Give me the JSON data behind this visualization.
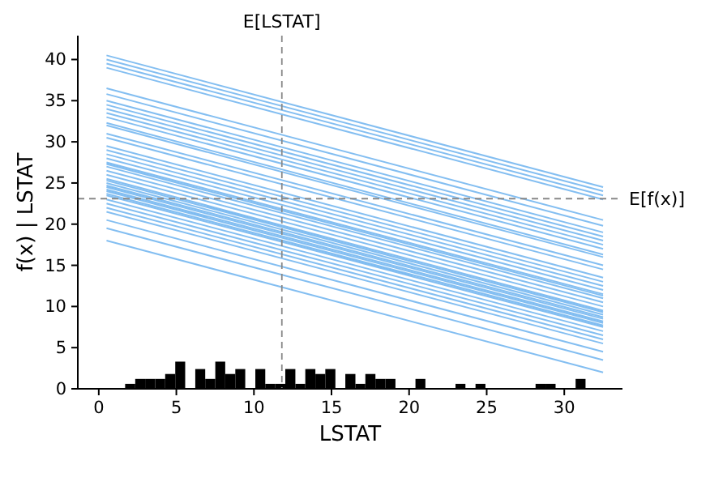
{
  "chart_data": {
    "type": "line",
    "xlabel": "LSTAT",
    "ylabel": "f(x) | LSTAT",
    "xlim": [
      -1.35,
      33.75
    ],
    "ylim": [
      0,
      42.9
    ],
    "xticks": [
      0,
      5,
      10,
      15,
      20,
      25,
      30
    ],
    "yticks": [
      0,
      5,
      10,
      15,
      20,
      25,
      30,
      35,
      40
    ],
    "grid": false,
    "x": [
      0.5,
      32.5
    ],
    "ref_lines": [
      {
        "axis": "x",
        "value": 11.8,
        "label": "E[LSTAT]",
        "color": "#888888",
        "line_style": "dashed"
      },
      {
        "axis": "y",
        "value": 23.1,
        "label": "E[f(x)]",
        "color": "#888888",
        "line_style": "dashed"
      }
    ],
    "series": [
      {
        "type": "histogram",
        "color": "#000000",
        "bins": [
          1.7,
          2.35,
          2.99,
          3.64,
          4.28,
          4.93,
          5.57,
          6.22,
          6.86,
          7.51,
          8.15,
          8.8,
          9.44,
          10.09,
          10.73,
          11.38,
          12.02,
          12.67,
          13.31,
          13.96,
          14.6,
          15.25,
          15.89,
          16.54,
          17.18,
          17.83,
          18.47,
          19.12,
          19.76,
          20.41,
          21.05,
          21.7,
          22.34,
          22.99,
          23.63,
          24.28,
          24.92,
          25.57,
          26.21,
          26.86,
          27.5,
          28.15,
          28.79,
          29.44,
          30.08,
          30.73,
          31.37
        ],
        "values": [
          0.6,
          1.2,
          1.2,
          1.2,
          1.8,
          3.3,
          0,
          2.4,
          1.2,
          3.3,
          1.8,
          2.4,
          0,
          2.4,
          0.6,
          0.6,
          2.4,
          0.6,
          2.4,
          1.8,
          2.4,
          0,
          1.8,
          0.6,
          1.8,
          1.2,
          1.2,
          0,
          0,
          1.2,
          0,
          0,
          0,
          0.6,
          0,
          0.6,
          0,
          0,
          0,
          0,
          0,
          0.6,
          0.6,
          0,
          0,
          1.2
        ]
      },
      {
        "color": "#1e88e5",
        "values": [
          40.5,
          24.5
        ]
      },
      {
        "color": "#1e88e5",
        "values": [
          40,
          24
        ]
      },
      {
        "color": "#1e88e5",
        "values": [
          39.5,
          23.5
        ]
      },
      {
        "color": "#1e88e5",
        "values": [
          39,
          23
        ]
      },
      {
        "color": "#1e88e5",
        "values": [
          36.5,
          20.5
        ]
      },
      {
        "color": "#1e88e5",
        "values": [
          35.8,
          19.8
        ]
      },
      {
        "color": "#1e88e5",
        "values": [
          35,
          19
        ]
      },
      {
        "color": "#1e88e5",
        "values": [
          34.5,
          18.5
        ]
      },
      {
        "color": "#1e88e5",
        "values": [
          34,
          18
        ]
      },
      {
        "color": "#1e88e5",
        "values": [
          33.5,
          17.5
        ]
      },
      {
        "color": "#1e88e5",
        "values": [
          33,
          17
        ]
      },
      {
        "color": "#1e88e5",
        "values": [
          32.3,
          16.3
        ]
      },
      {
        "color": "#1e88e5",
        "values": [
          32,
          16
        ]
      },
      {
        "color": "#1e88e5",
        "values": [
          31,
          15
        ]
      },
      {
        "color": "#1e88e5",
        "values": [
          30.5,
          14.5
        ]
      },
      {
        "color": "#1e88e5",
        "values": [
          29.5,
          13.5
        ]
      },
      {
        "color": "#1e88e5",
        "values": [
          29,
          13
        ]
      },
      {
        "color": "#1e88e5",
        "values": [
          28.5,
          12.5
        ]
      },
      {
        "color": "#1e88e5",
        "values": [
          28,
          12
        ]
      },
      {
        "color": "#1e88e5",
        "values": [
          27.5,
          11.5
        ]
      },
      {
        "color": "#1e88e5",
        "values": [
          27.3,
          11.3
        ]
      },
      {
        "color": "#1e88e5",
        "values": [
          27,
          11
        ]
      },
      {
        "color": "#1e88e5",
        "values": [
          26.5,
          10.5
        ]
      },
      {
        "color": "#1e88e5",
        "values": [
          26,
          10
        ]
      },
      {
        "color": "#1e88e5",
        "values": [
          25.5,
          9.5
        ]
      },
      {
        "color": "#1e88e5",
        "values": [
          25.3,
          9.3
        ]
      },
      {
        "color": "#1e88e5",
        "values": [
          25,
          9
        ]
      },
      {
        "color": "#1e88e5",
        "values": [
          24.7,
          8.7
        ]
      },
      {
        "color": "#1e88e5",
        "values": [
          24.5,
          8.5
        ]
      },
      {
        "color": "#1e88e5",
        "values": [
          24.2,
          8.2
        ]
      },
      {
        "color": "#1e88e5",
        "values": [
          24,
          8
        ]
      },
      {
        "color": "#1e88e5",
        "values": [
          23.7,
          7.7
        ]
      },
      {
        "color": "#1e88e5",
        "values": [
          23.5,
          7.5
        ]
      },
      {
        "color": "#1e88e5",
        "values": [
          23,
          7
        ]
      },
      {
        "color": "#1e88e5",
        "values": [
          22.5,
          6.5
        ]
      },
      {
        "color": "#1e88e5",
        "values": [
          22,
          6
        ]
      },
      {
        "color": "#1e88e5",
        "values": [
          21.5,
          5.5
        ]
      },
      {
        "color": "#1e88e5",
        "values": [
          20.5,
          4.5
        ]
      },
      {
        "color": "#1e88e5",
        "values": [
          19.5,
          3.5
        ]
      },
      {
        "color": "#1e88e5",
        "values": [
          18,
          2
        ]
      }
    ]
  }
}
